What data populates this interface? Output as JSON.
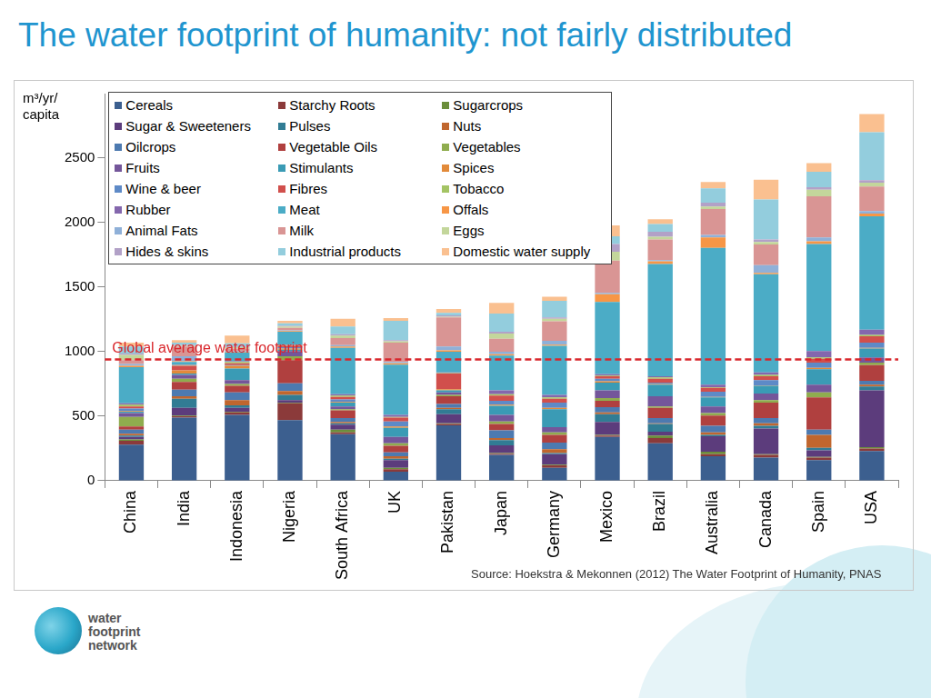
{
  "chart_data": {
    "type": "bar",
    "title": "The water footprint of humanity: not fairly distributed",
    "y_label": "m³/yr/ capita",
    "stacked": true,
    "grid": false,
    "legend": "top-left",
    "categories": [
      "China",
      "India",
      "Indonesia",
      "Nigeria",
      "South Africa",
      "UK",
      "Pakistan",
      "Japan",
      "Germany",
      "Mexico",
      "Brazil",
      "Australia",
      "Canada",
      "Spain",
      "USA"
    ],
    "ylim": [
      0,
      3000
    ],
    "yticks": [
      0,
      500,
      1000,
      1500,
      2000,
      2500
    ],
    "series": [
      {
        "name": "Cereals",
        "color": "#3c5f8f",
        "values": [
          280,
          490,
          510,
          470,
          360,
          70,
          430,
          200,
          100,
          340,
          290,
          190,
          180,
          160,
          230
        ]
      },
      {
        "name": "Starchy Roots",
        "color": "#8b3a3a",
        "values": [
          30,
          10,
          20,
          130,
          15,
          20,
          10,
          10,
          20,
          10,
          40,
          15,
          20,
          20,
          20
        ]
      },
      {
        "name": "Sugarcrops",
        "color": "#6b8e3b",
        "values": [
          10,
          5,
          5,
          5,
          20,
          10,
          5,
          5,
          5,
          5,
          20,
          20,
          5,
          5,
          10
        ]
      },
      {
        "name": "Sugar & Sweeteners",
        "color": "#5c3c7c",
        "values": [
          20,
          60,
          30,
          20,
          40,
          60,
          70,
          60,
          80,
          100,
          30,
          120,
          200,
          50,
          440
        ]
      },
      {
        "name": "Pulses",
        "color": "#317c94",
        "values": [
          10,
          70,
          20,
          40,
          10,
          10,
          40,
          40,
          10,
          60,
          60,
          10,
          20,
          20,
          30
        ]
      },
      {
        "name": "Nuts",
        "color": "#c0662e",
        "values": [
          15,
          20,
          40,
          30,
          10,
          20,
          10,
          15,
          30,
          15,
          5,
          20,
          20,
          100,
          15
        ]
      },
      {
        "name": "Oilcrops",
        "color": "#4d7ab0",
        "values": [
          30,
          50,
          60,
          60,
          30,
          30,
          30,
          60,
          50,
          40,
          40,
          50,
          40,
          40,
          30
        ]
      },
      {
        "name": "Vegetable Oils",
        "color": "#b0403f",
        "values": [
          25,
          60,
          50,
          180,
          60,
          50,
          60,
          50,
          60,
          50,
          80,
          80,
          120,
          250,
          120
        ]
      },
      {
        "name": "Vegetables",
        "color": "#8fac4e",
        "values": [
          75,
          25,
          15,
          30,
          10,
          20,
          10,
          20,
          20,
          20,
          10,
          20,
          20,
          40,
          20
        ]
      },
      {
        "name": "Fruits",
        "color": "#74569a",
        "values": [
          30,
          30,
          30,
          40,
          20,
          50,
          20,
          50,
          40,
          60,
          80,
          50,
          50,
          60,
          40
        ]
      },
      {
        "name": "Stimulants",
        "color": "#3a9bb5",
        "values": [
          10,
          10,
          90,
          10,
          30,
          70,
          15,
          70,
          140,
          60,
          90,
          70,
          60,
          120,
          70
        ]
      },
      {
        "name": "Spices",
        "color": "#e28a3a",
        "values": [
          5,
          25,
          20,
          10,
          5,
          10,
          10,
          10,
          10,
          10,
          5,
          5,
          5,
          10,
          5
        ]
      },
      {
        "name": "Wine & beer",
        "color": "#5e8ac7",
        "values": [
          20,
          0,
          5,
          10,
          20,
          40,
          0,
          30,
          40,
          20,
          10,
          40,
          40,
          40,
          40
        ]
      },
      {
        "name": "Fibres",
        "color": "#d14f4c",
        "values": [
          15,
          35,
          15,
          10,
          20,
          30,
          120,
          40,
          30,
          20,
          30,
          30,
          30,
          30,
          50
        ]
      },
      {
        "name": "Tobacco",
        "color": "#a4c464",
        "values": [
          15,
          5,
          10,
          5,
          10,
          5,
          5,
          10,
          10,
          5,
          10,
          5,
          10,
          10,
          10
        ]
      },
      {
        "name": "Rubber",
        "color": "#8467ad",
        "values": [
          10,
          5,
          5,
          5,
          10,
          15,
          5,
          30,
          20,
          10,
          10,
          20,
          20,
          50,
          40
        ]
      },
      {
        "name": "Meat",
        "color": "#4bacc6",
        "values": [
          280,
          20,
          70,
          100,
          360,
          390,
          160,
          270,
          380,
          560,
          870,
          1060,
          760,
          830,
          880
        ]
      },
      {
        "name": "Offals",
        "color": "#f79646",
        "values": [
          10,
          5,
          5,
          5,
          10,
          10,
          10,
          10,
          10,
          60,
          20,
          80,
          10,
          20,
          20
        ]
      },
      {
        "name": "Animal Fats",
        "color": "#8fb0d8",
        "values": [
          15,
          40,
          5,
          5,
          10,
          10,
          30,
          20,
          30,
          10,
          10,
          20,
          60,
          30,
          20
        ]
      },
      {
        "name": "Milk",
        "color": "#d99594",
        "values": [
          30,
          75,
          20,
          20,
          55,
          150,
          226,
          100,
          150,
          250,
          160,
          200,
          160,
          320,
          190
        ]
      },
      {
        "name": "Eggs",
        "color": "#c3d69b",
        "values": [
          40,
          5,
          10,
          10,
          20,
          10,
          5,
          40,
          20,
          70,
          20,
          20,
          20,
          50,
          30
        ]
      },
      {
        "name": "Hides & skins",
        "color": "#b2a1c7",
        "values": [
          10,
          5,
          5,
          5,
          10,
          10,
          10,
          15,
          10,
          60,
          40,
          30,
          20,
          20,
          20
        ]
      },
      {
        "name": "Industrial products",
        "color": "#93cddd",
        "values": [
          55,
          20,
          25,
          20,
          60,
          150,
          20,
          140,
          130,
          60,
          60,
          110,
          310,
          120,
          370
        ]
      },
      {
        "name": "Domestic water supply",
        "color": "#fac090",
        "values": [
          30,
          20,
          60,
          20,
          60,
          20,
          30,
          84,
          31,
          83,
          37,
          50,
          153,
          66,
          142
        ]
      }
    ],
    "reference_line": {
      "label": "Global average water footprint",
      "value": 940,
      "color": "#d9262b",
      "line_style": "dashed"
    },
    "source": "Source: Hoekstra & Mekonnen (2012) The Water Footprint of Humanity, PNAS",
    "logo_text": "water footprint network"
  }
}
